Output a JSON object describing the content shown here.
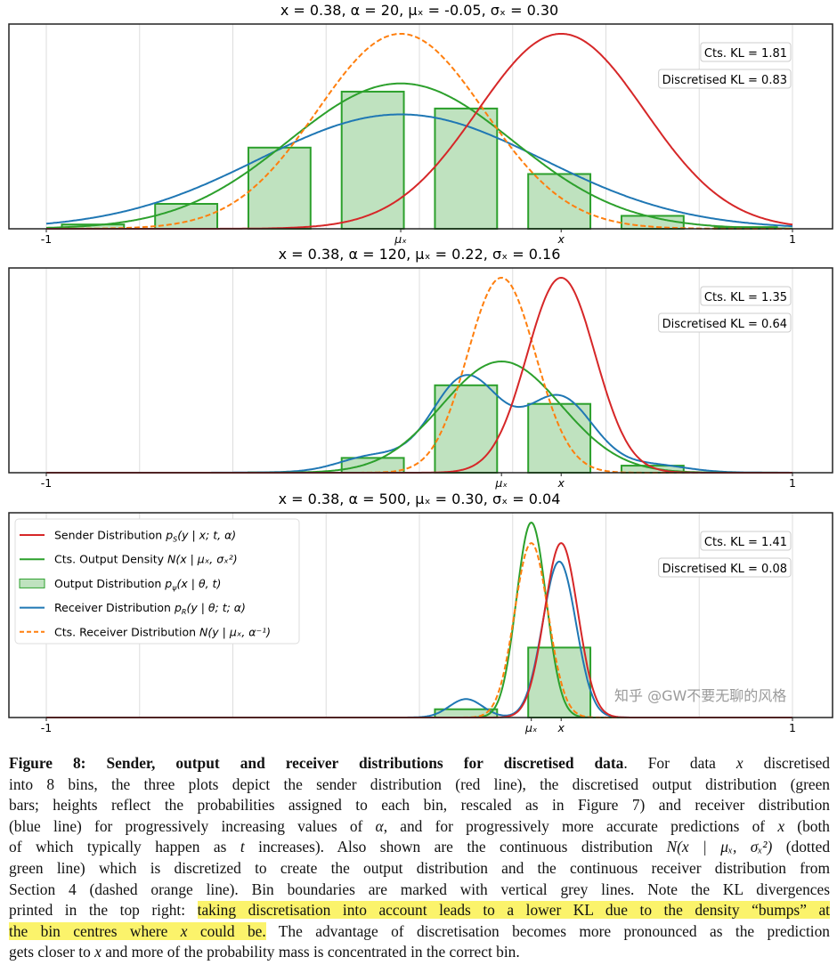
{
  "colors": {
    "sender": "#d62728",
    "output_density": "#2ca02c",
    "output_bars_fill": "#2ca02c",
    "receiver": "#1f77b4",
    "cts_receiver": "#ff7f0e",
    "bin_lines": "#dddddd"
  },
  "chart_data": [
    {
      "type": "line+bar",
      "title": "x = 0.38, α = 20, μₓ = -0.05, σₓ = 0.30",
      "x": 0.38,
      "alpha": 20,
      "mu_x": -0.05,
      "sigma_x": 0.3,
      "xlim": [
        -1,
        1
      ],
      "bin_edges": [
        -1,
        -0.75,
        -0.5,
        -0.25,
        0,
        0.25,
        0.5,
        0.75,
        1
      ],
      "bin_probs": [
        0.0098,
        0.057,
        0.1857,
        0.3137,
        0.2751,
        0.1253,
        0.0296,
        0.0038
      ],
      "xticks": [
        "-1",
        "μₓ",
        "x",
        "1"
      ],
      "kl": {
        "cts": "Cts. KL = 1.81",
        "disc": "Discretised KL = 0.83"
      },
      "grid": "vertical bin boundaries"
    },
    {
      "type": "line+bar",
      "title": "x = 0.38, α = 120, μₓ = 0.22, σₓ = 0.16",
      "x": 0.38,
      "alpha": 120,
      "mu_x": 0.22,
      "sigma_x": 0.16,
      "xlim": [
        -1,
        1
      ],
      "bin_edges": [
        -1,
        -0.75,
        -0.5,
        -0.25,
        0,
        0.25,
        0.5,
        0.75,
        1
      ],
      "bin_probs": [
        0,
        0,
        0.0017,
        0.0829,
        0.4898,
        0.3855,
        0.0395,
        0.0005
      ],
      "xticks": [
        "-1",
        "μₓ",
        "x",
        "1"
      ],
      "kl": {
        "cts": "Cts. KL = 1.35",
        "disc": "Discretised KL = 0.64"
      },
      "grid": "vertical bin boundaries"
    },
    {
      "type": "line+bar",
      "title": "x = 0.38, α = 500, μₓ = 0.30, σₓ = 0.04",
      "x": 0.38,
      "alpha": 500,
      "mu_x": 0.3,
      "sigma_x": 0.04,
      "xlim": [
        -1,
        1
      ],
      "bin_edges": [
        -1,
        -0.75,
        -0.5,
        -0.25,
        0,
        0.25,
        0.5,
        0.75,
        1
      ],
      "bin_probs": [
        0,
        0,
        0,
        0,
        0.1056,
        0.8944,
        0,
        0
      ],
      "xticks": [
        "-1",
        "μₓ",
        "x",
        "1"
      ],
      "kl": {
        "cts": "Cts. KL = 1.41",
        "disc": "Discretised KL = 0.08"
      },
      "grid": "vertical bin boundaries",
      "legend": {
        "placement": "top-left",
        "items": [
          {
            "label": "Sender Distribution ",
            "p": "p",
            "sub": "S",
            "args": "(y | x; t, α)",
            "kind": "line",
            "color": "#d62728"
          },
          {
            "label": "Cts. Output Density ",
            "p": "N",
            "sub": "",
            "args": "(x | μₓ, σₓ²)",
            "kind": "line",
            "color": "#2ca02c"
          },
          {
            "label": "Output Distribution ",
            "p": "p",
            "sub": "ψ",
            "args": "(x | θ, t)",
            "kind": "patch",
            "color": "#2ca02c"
          },
          {
            "label": "Receiver Distribution ",
            "p": "p",
            "sub": "R",
            "args": "(y | θ; t; α)",
            "kind": "line",
            "color": "#1f77b4"
          },
          {
            "label": "Cts. Receiver Distribution ",
            "p": "N",
            "sub": "",
            "args": "(y | μₓ, α⁻¹)",
            "kind": "dashed",
            "color": "#ff7f0e"
          }
        ]
      }
    }
  ],
  "caption": {
    "lines": [
      [
        {
          "t": "Figure 8: Sender, output and receiver distributions for discretised data",
          "s": "b"
        },
        {
          "t": ". For data ",
          "s": ""
        },
        {
          "t": "x",
          "s": "i"
        },
        {
          "t": " discretised",
          "s": ""
        }
      ],
      [
        {
          "t": "into 8 bins, the three plots depict the sender distribution (red line), the discretised output distribution (green",
          "s": ""
        }
      ],
      [
        {
          "t": "bars; heights reflect the probabilities assigned to each bin, rescaled as in Figure 7) and receiver distribution",
          "s": ""
        }
      ],
      [
        {
          "t": "(blue line) for progressively increasing values of ",
          "s": ""
        },
        {
          "t": "α",
          "s": "i"
        },
        {
          "t": ", and for progressively more accurate predictions of ",
          "s": ""
        },
        {
          "t": "x",
          "s": "i"
        },
        {
          "t": " (both",
          "s": ""
        }
      ],
      [
        {
          "t": "of which typically happen as ",
          "s": ""
        },
        {
          "t": "t",
          "s": "i"
        },
        {
          "t": " increases). Also shown are the continuous distribution ",
          "s": ""
        },
        {
          "t": "N(x | μₓ, σₓ²)",
          "s": "i"
        },
        {
          "t": " (dotted",
          "s": ""
        }
      ],
      [
        {
          "t": "green line) which is discretized to create the output distribution and the continuous receiver distribution from",
          "s": ""
        }
      ],
      [
        {
          "t": "Section 4 (dashed orange line). Bin boundaries are marked with vertical grey lines. Note the KL divergences",
          "s": ""
        }
      ],
      [
        {
          "t": "printed in the top right: ",
          "s": ""
        },
        {
          "t": "taking discretisation into account leads to a lower KL due to the density “bumps” at",
          "s": "hl"
        }
      ],
      [
        {
          "t": "the bin centres where ",
          "s": "hl"
        },
        {
          "t": "x",
          "s": "hl i"
        },
        {
          "t": " could be.",
          "s": "hl"
        },
        {
          "t": " The advantage of discretisation becomes more pronounced as the prediction",
          "s": ""
        }
      ],
      [
        {
          "t": "gets closer to ",
          "s": ""
        },
        {
          "t": "x",
          "s": "i"
        },
        {
          "t": " and more of the probability mass is concentrated in the correct bin.",
          "s": ""
        }
      ]
    ]
  },
  "watermark": "知乎 @GW不要无聊的风格"
}
